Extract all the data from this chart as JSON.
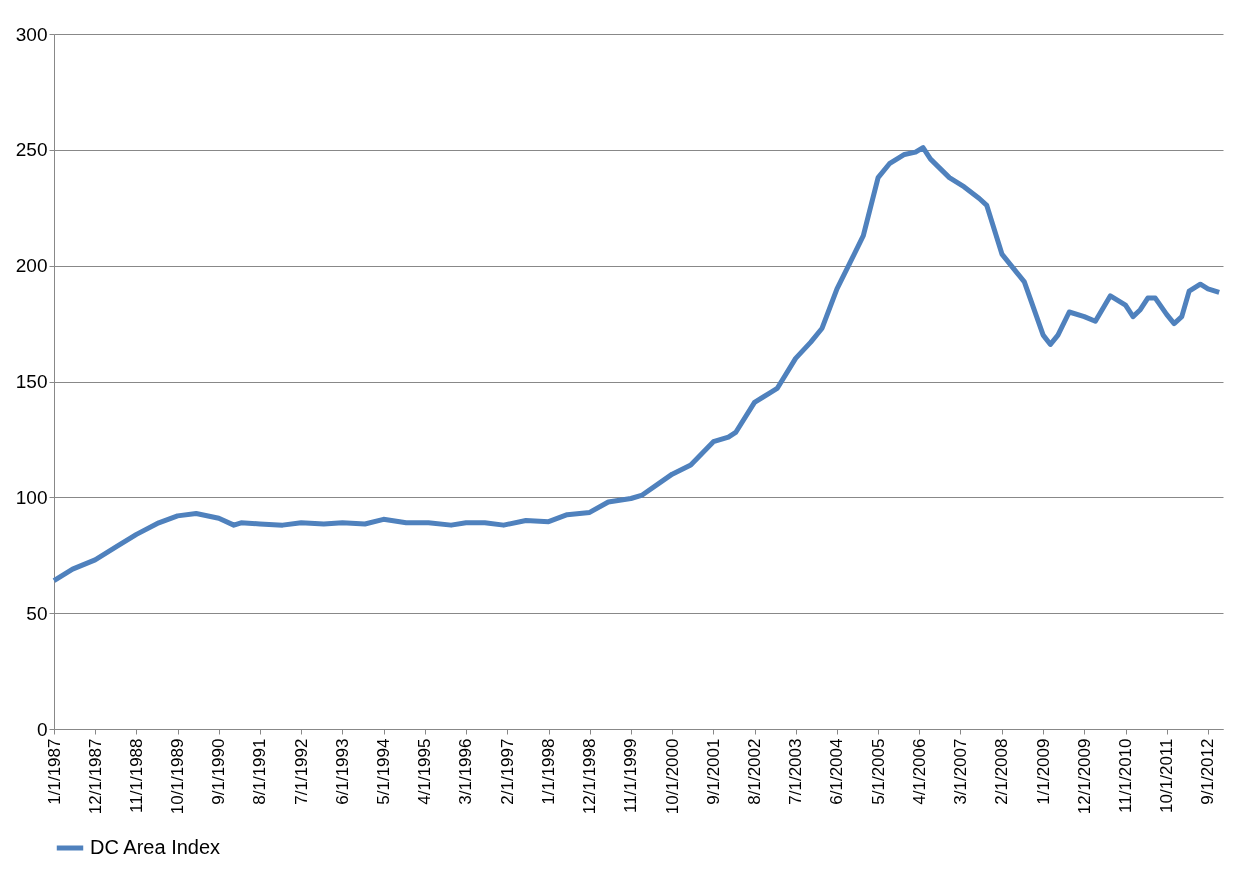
{
  "chart_data": {
    "type": "line",
    "legend": "bottom",
    "grid": "y",
    "line_style": "solid",
    "marker": "none",
    "ylim": [
      0,
      300
    ],
    "yticks": [
      0,
      50,
      100,
      150,
      200,
      250,
      300
    ],
    "xlim": [
      "1987-01-01",
      "2013-01-01"
    ],
    "xticks": [
      {
        "value": "1987-01-01",
        "label": "1/1/1987"
      },
      {
        "value": "1987-12-01",
        "label": "12/1/1987"
      },
      {
        "value": "1988-11-01",
        "label": "11/1/1988"
      },
      {
        "value": "1989-10-01",
        "label": "10/1/1989"
      },
      {
        "value": "1990-09-01",
        "label": "9/1/1990"
      },
      {
        "value": "1991-08-01",
        "label": "8/1/1991"
      },
      {
        "value": "1992-07-01",
        "label": "7/1/1992"
      },
      {
        "value": "1993-06-01",
        "label": "6/1/1993"
      },
      {
        "value": "1994-05-01",
        "label": "5/1/1994"
      },
      {
        "value": "1995-04-01",
        "label": "4/1/1995"
      },
      {
        "value": "1996-03-01",
        "label": "3/1/1996"
      },
      {
        "value": "1997-02-01",
        "label": "2/1/1997"
      },
      {
        "value": "1998-01-01",
        "label": "1/1/1998"
      },
      {
        "value": "1998-12-01",
        "label": "12/1/1998"
      },
      {
        "value": "1999-11-01",
        "label": "11/1/1999"
      },
      {
        "value": "2000-10-01",
        "label": "10/1/2000"
      },
      {
        "value": "2001-09-01",
        "label": "9/1/2001"
      },
      {
        "value": "2002-08-01",
        "label": "8/1/2002"
      },
      {
        "value": "2003-07-01",
        "label": "7/1/2003"
      },
      {
        "value": "2004-06-01",
        "label": "6/1/2004"
      },
      {
        "value": "2005-05-01",
        "label": "5/1/2005"
      },
      {
        "value": "2006-04-01",
        "label": "4/1/2006"
      },
      {
        "value": "2007-03-01",
        "label": "3/1/2007"
      },
      {
        "value": "2008-02-01",
        "label": "2/1/2008"
      },
      {
        "value": "2009-01-01",
        "label": "1/1/2009"
      },
      {
        "value": "2009-12-01",
        "label": "12/1/2009"
      },
      {
        "value": "2010-11-01",
        "label": "11/1/2010"
      },
      {
        "value": "2011-10-01",
        "label": "10/1/2011"
      },
      {
        "value": "2012-09-01",
        "label": "9/1/2012"
      }
    ],
    "x": [
      "1987-01",
      "1987-06",
      "1987-12",
      "1988-06",
      "1988-11",
      "1989-05",
      "1989-10",
      "1990-03",
      "1990-09",
      "1991-01",
      "1991-03",
      "1991-08",
      "1992-02",
      "1992-07",
      "1993-01",
      "1993-06",
      "1993-12",
      "1994-05",
      "1994-11",
      "1995-05",
      "1995-11",
      "1996-03",
      "1996-08",
      "1997-01",
      "1997-07",
      "1998-01",
      "1998-06",
      "1998-12",
      "1999-05",
      "1999-11",
      "2000-02",
      "2000-10",
      "2001-03",
      "2001-09",
      "2002-01",
      "2002-03",
      "2002-08",
      "2002-12",
      "2003-02",
      "2003-07",
      "2003-11",
      "2004-02",
      "2004-06",
      "2004-10",
      "2005-01",
      "2005-05",
      "2005-08",
      "2005-12",
      "2006-03",
      "2006-05",
      "2006-07",
      "2006-12",
      "2007-04",
      "2007-08",
      "2007-10",
      "2008-02",
      "2008-06",
      "2008-08",
      "2009-01",
      "2009-03",
      "2009-05",
      "2009-08",
      "2009-12",
      "2010-03",
      "2010-07",
      "2010-11",
      "2011-01",
      "2011-03",
      "2011-05",
      "2011-07",
      "2011-10",
      "2011-12",
      "2012-02",
      "2012-04",
      "2012-07",
      "2012-09",
      "2012-12"
    ],
    "series": [
      {
        "name": "DC Area Index",
        "color": "#4f81bd",
        "values": [
          64,
          69,
          73,
          79,
          84,
          89,
          92,
          93,
          91,
          88,
          89,
          88.5,
          88,
          89,
          88.5,
          89,
          88.5,
          90.5,
          89,
          89,
          88,
          89,
          89,
          88,
          90,
          89.5,
          92.5,
          93.5,
          98,
          99.5,
          101,
          110,
          114,
          124,
          126,
          128,
          141,
          145,
          147,
          160,
          167,
          173,
          190,
          203,
          213,
          238,
          244,
          248,
          249,
          251,
          246,
          238,
          234,
          229,
          226,
          205,
          197,
          193,
          170,
          166,
          170,
          180,
          178,
          176,
          187,
          183,
          178,
          181,
          186,
          186,
          179,
          175,
          178,
          189,
          192,
          190,
          188.5
        ]
      }
    ]
  }
}
